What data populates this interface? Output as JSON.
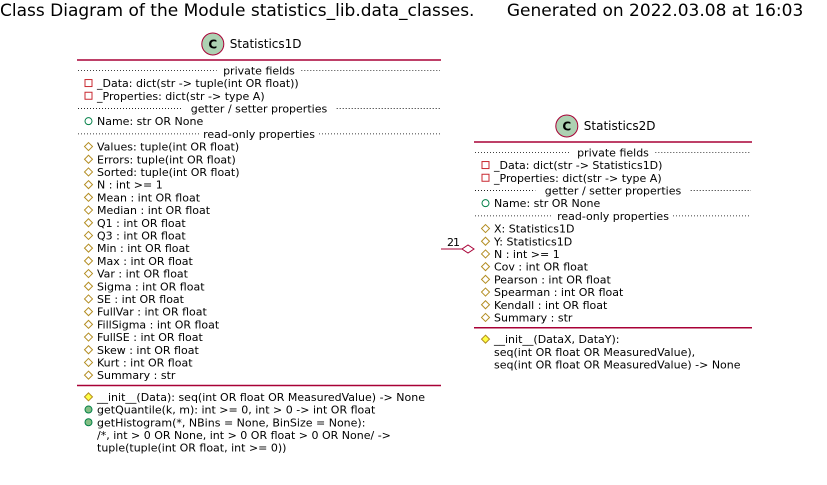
{
  "title": "Class Diagram of the Module statistics_lib.data_classes.      Generated on 2022.03.08 at 16:03",
  "colors": {
    "class_fill": "#FEFECE",
    "class_border": "#A80036",
    "stereotype_circle": "#ADD1B2",
    "private_icon": "#C82930",
    "protected_icon": "#FFFF44",
    "public_icon": "#84BE84"
  },
  "classes": [
    {
      "id": "statistics1d",
      "stereotype": "C",
      "name": "Statistics1D",
      "sections": [
        {
          "label": "private fields",
          "members": [
            {
              "vis": "private",
              "text": "_Data: dict(str -> tuple(int OR float))"
            },
            {
              "vis": "private",
              "text": "_Properties: dict(str -> type A)"
            }
          ]
        },
        {
          "label": "getter / setter properties",
          "members": [
            {
              "vis": "public",
              "text": "Name: str OR None"
            }
          ]
        },
        {
          "label": "read-only properties",
          "members": [
            {
              "vis": "protected",
              "text": "Values: tuple(int OR float)"
            },
            {
              "vis": "protected",
              "text": "Errors: tuple(int OR float)"
            },
            {
              "vis": "protected",
              "text": "Sorted: tuple(int OR float)"
            },
            {
              "vis": "protected",
              "text": "N : int >= 1"
            },
            {
              "vis": "protected",
              "text": "Mean : int OR float"
            },
            {
              "vis": "protected",
              "text": "Median : int OR float"
            },
            {
              "vis": "protected",
              "text": "Q1 : int OR float"
            },
            {
              "vis": "protected",
              "text": "Q3 : int OR float"
            },
            {
              "vis": "protected",
              "text": "Min : int OR float"
            },
            {
              "vis": "protected",
              "text": "Max : int OR float"
            },
            {
              "vis": "protected",
              "text": "Var : int OR float"
            },
            {
              "vis": "protected",
              "text": "Sigma : int OR float"
            },
            {
              "vis": "protected",
              "text": "SE : int OR float"
            },
            {
              "vis": "protected",
              "text": "FullVar : int OR float"
            },
            {
              "vis": "protected",
              "text": "FillSigma : int OR float"
            },
            {
              "vis": "protected",
              "text": "FullSE : int OR float"
            },
            {
              "vis": "protected",
              "text": "Skew : int OR float"
            },
            {
              "vis": "protected",
              "text": "Kurt : int OR float"
            },
            {
              "vis": "protected",
              "text": "Summary : str"
            }
          ]
        }
      ],
      "methods": [
        {
          "vis": "protected",
          "lines": [
            "__init__(Data): seq(int OR float OR MeasuredValue) -> None"
          ]
        },
        {
          "vis": "public",
          "lines": [
            "getQuantile(k, m): int >= 0, int > 0 -> int OR float"
          ]
        },
        {
          "vis": "public",
          "lines": [
            "getHistogram(*, NBins = None, BinSize = None):",
            "/*, int > 0 OR None, int > 0 OR float > 0 OR None/ ->",
            "tuple(tuple(int OR float, int >= 0))"
          ]
        }
      ]
    },
    {
      "id": "statistics2d",
      "stereotype": "C",
      "name": "Statistics2D",
      "sections": [
        {
          "label": "private fields",
          "members": [
            {
              "vis": "private",
              "text": "_Data: dict(str -> Statistics1D)"
            },
            {
              "vis": "private",
              "text": "_Properties: dict(str -> type A)"
            }
          ]
        },
        {
          "label": "getter / setter properties",
          "members": [
            {
              "vis": "public",
              "text": "Name: str OR None"
            }
          ]
        },
        {
          "label": "read-only properties",
          "members": [
            {
              "vis": "protected",
              "text": "X: Statistics1D"
            },
            {
              "vis": "protected",
              "text": "Y: Statistics1D"
            },
            {
              "vis": "protected",
              "text": "N : int >= 1"
            },
            {
              "vis": "protected",
              "text": "Cov : int OR float"
            },
            {
              "vis": "protected",
              "text": "Pearson : int OR float"
            },
            {
              "vis": "protected",
              "text": "Spearman : int OR float"
            },
            {
              "vis": "protected",
              "text": "Kendall : int OR float"
            },
            {
              "vis": "protected",
              "text": "Summary : str"
            }
          ]
        }
      ],
      "methods": [
        {
          "vis": "protected",
          "lines": [
            "__init__(DataX, DataY):",
            "seq(int OR float OR MeasuredValue),",
            "seq(int OR float OR MeasuredValue) -> None"
          ]
        }
      ]
    }
  ],
  "relation": {
    "type": "aggregation",
    "from": "statistics1d",
    "to": "statistics2d",
    "from_cardinality": "2",
    "to_cardinality": "1"
  }
}
